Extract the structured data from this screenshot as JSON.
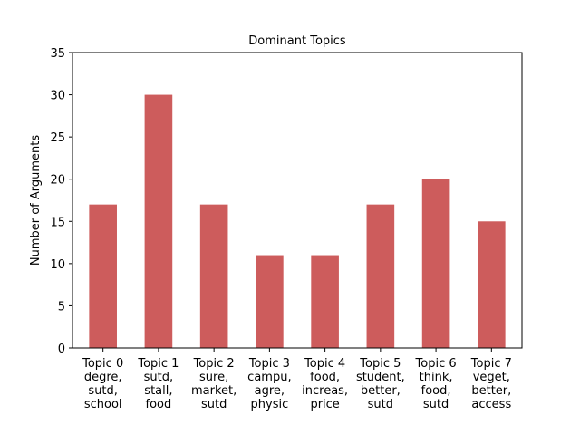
{
  "chart_data": {
    "type": "bar",
    "title": "Dominant Topics",
    "xlabel": "",
    "ylabel": "Number of Arguments",
    "categories": [
      [
        "Topic 0",
        "degre,",
        "sutd,",
        "school"
      ],
      [
        "Topic 1",
        "sutd,",
        "stall,",
        "food"
      ],
      [
        "Topic 2",
        "sure,",
        "market,",
        "sutd"
      ],
      [
        "Topic 3",
        "campu,",
        "agre,",
        "physic"
      ],
      [
        "Topic 4",
        "food,",
        "increas,",
        "price"
      ],
      [
        "Topic 5",
        "student,",
        "better,",
        "sutd"
      ],
      [
        "Topic 6",
        "think,",
        "food,",
        "sutd"
      ],
      [
        "Topic 7",
        "veget,",
        "better,",
        "access"
      ]
    ],
    "values": [
      17,
      30,
      17,
      11,
      11,
      17,
      20,
      15
    ],
    "ylim": [
      0,
      35
    ],
    "yticks": [
      0,
      5,
      10,
      15,
      20,
      25,
      30,
      35
    ],
    "bar_color": "#cd5c5c",
    "grid": false,
    "legend": "none"
  }
}
